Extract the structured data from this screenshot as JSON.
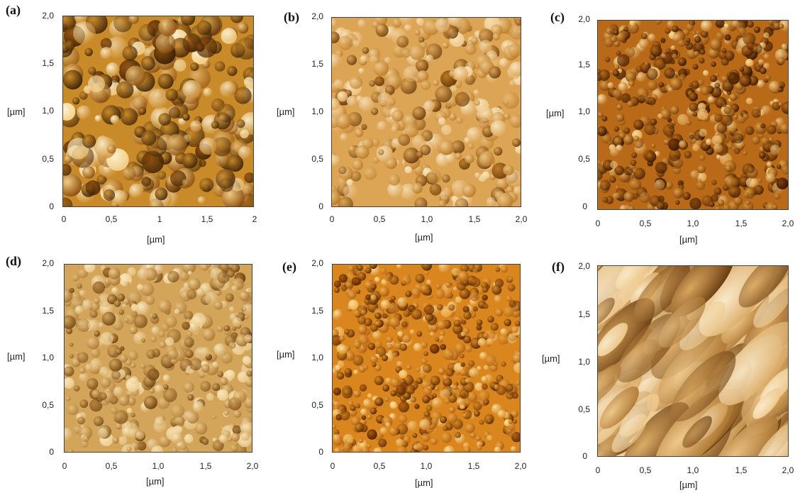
{
  "panels": [
    {
      "label": "(a)",
      "y_ticks": [
        "0",
        "0,5",
        "1,0",
        "1,5",
        "2,0"
      ],
      "x_ticks": [
        "0",
        "0,5",
        "1",
        "1,5",
        "2"
      ],
      "y_unit": "[µm]",
      "x_unit": "[µm]",
      "palette": [
        "#3a1f05",
        "#8a4a0c",
        "#c98a2a",
        "#f3cf86",
        "#fff3d2"
      ]
    },
    {
      "label": "(b)",
      "y_ticks": [
        "0",
        "0,5",
        "1,0",
        "1,5",
        "2,0"
      ],
      "x_ticks": [
        "0",
        "0,5",
        "1,0",
        "1,5",
        "2,0"
      ],
      "y_unit": "[µm]",
      "x_unit": "[µm]",
      "palette": [
        "#6a3a0a",
        "#b97824",
        "#dca455",
        "#efc98a",
        "#f9e6c0"
      ]
    },
    {
      "label": "(c)",
      "y_ticks": [
        "0",
        "0,5",
        "1,0",
        "1,5",
        "2,0"
      ],
      "x_ticks": [
        "0",
        "0,5",
        "1,0",
        "1,5",
        "2,0"
      ],
      "y_unit": "[µm]",
      "x_unit": "[µm]",
      "palette": [
        "#2e1202",
        "#7a3c08",
        "#b86a18",
        "#e3a447",
        "#fbe2a8"
      ]
    },
    {
      "label": "(d)",
      "y_ticks": [
        "0",
        "0,5",
        "1,0",
        "1,5",
        "2,0"
      ],
      "x_ticks": [
        "0",
        "0,5",
        "1,0",
        "1,5",
        "2,0"
      ],
      "y_unit": "[µm]",
      "x_unit": "[µm]",
      "palette": [
        "#6b4010",
        "#a87330",
        "#d3a55a",
        "#ecca88",
        "#fae9c2"
      ]
    },
    {
      "label": "(e)",
      "y_ticks": [
        "0",
        "0,5",
        "1,0",
        "1,5",
        "2,0"
      ],
      "x_ticks": [
        "0",
        "0,5",
        "1,0",
        "1,5",
        "2,0"
      ],
      "y_unit": "[µm]",
      "x_unit": "[µm]",
      "palette": [
        "#4a1f02",
        "#a8560c",
        "#d9861f",
        "#f2b04a",
        "#fde3a2"
      ]
    },
    {
      "label": "(f)",
      "y_ticks": [
        "0",
        "0,5",
        "1,0",
        "1,5",
        "2,0"
      ],
      "x_ticks": [
        "0",
        "0,5",
        "1,0",
        "1,5",
        "2,0"
      ],
      "y_unit": "[µm]",
      "x_unit": "[µm]",
      "palette": [
        "#6a3d10",
        "#ad7632",
        "#d9a65e",
        "#eec88a",
        "#fbeacb"
      ]
    }
  ]
}
